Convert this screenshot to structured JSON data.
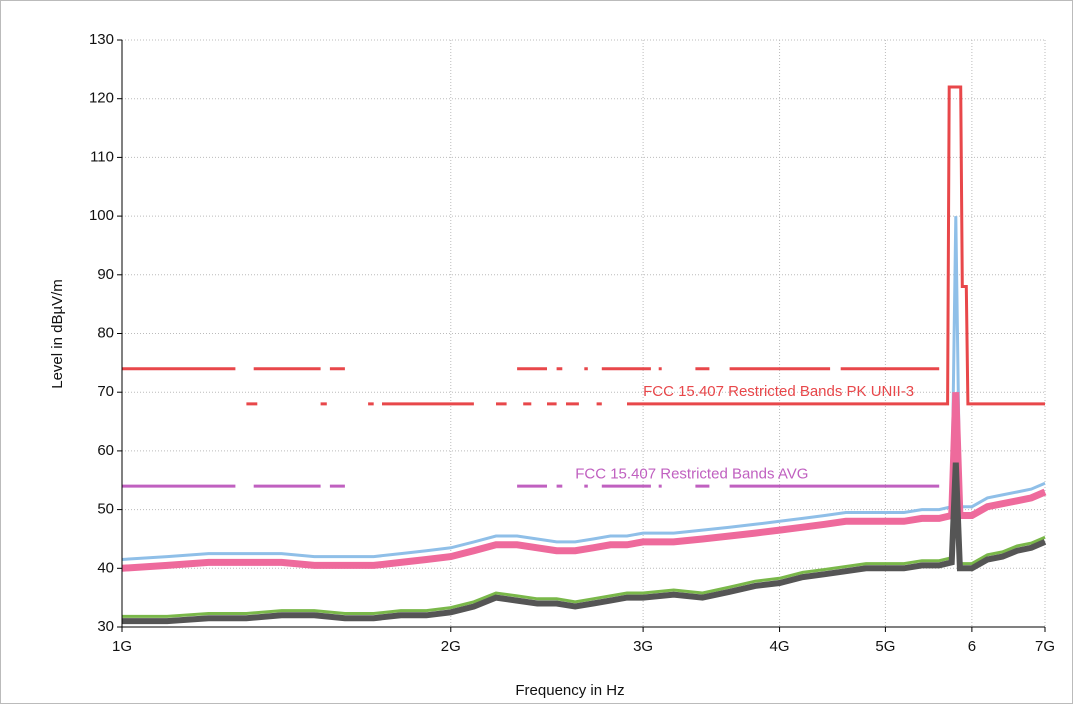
{
  "chart_data": {
    "type": "line",
    "xlabel": "Frequency in Hz",
    "ylabel": "Level in dBµV/m",
    "xscale": "log",
    "grid": true,
    "xlim": [
      1,
      7
    ],
    "ylim": [
      30,
      130
    ],
    "yticks": [
      30,
      40,
      50,
      60,
      70,
      80,
      90,
      100,
      110,
      120,
      130
    ],
    "xticks": [
      {
        "value": 1,
        "label": "1G"
      },
      {
        "value": 2,
        "label": "2G"
      },
      {
        "value": 3,
        "label": "3G"
      },
      {
        "value": 4,
        "label": "4G"
      },
      {
        "value": 5,
        "label": "5G"
      },
      {
        "value": 6,
        "label": "6"
      },
      {
        "value": 7,
        "label": "7G"
      }
    ],
    "annotations": [
      {
        "text": "FCC 15.407 Restricted Bands PK UNII-3",
        "x": 3.0,
        "y": 70,
        "color": "#e8474a"
      },
      {
        "text": "FCC 15.407 Restricted Bands AVG",
        "x": 2.6,
        "y": 56,
        "color": "#c060c0"
      }
    ],
    "series": [
      {
        "color": "#e8474a",
        "width": 3,
        "x": [
          1.0,
          1.27,
          null,
          1.32,
          1.52,
          null,
          1.55,
          1.6,
          null,
          2.3,
          2.45,
          null,
          2.5,
          2.53,
          null,
          2.65,
          2.67,
          null,
          2.75,
          3.05,
          null,
          3.1,
          3.12,
          null,
          3.35,
          3.45,
          null,
          3.6,
          4.45,
          null,
          4.55,
          5.6
        ],
        "values": [
          74,
          74,
          null,
          74,
          74,
          null,
          74,
          74,
          null,
          74,
          74,
          null,
          74,
          74,
          null,
          74,
          74,
          null,
          74,
          74,
          null,
          74,
          74,
          null,
          74,
          74,
          null,
          74,
          74,
          null,
          74,
          74
        ]
      },
      {
        "color": "#e8474a",
        "width": 3,
        "x": [
          1.3,
          1.33,
          null,
          1.52,
          1.54,
          null,
          1.68,
          1.7,
          null,
          1.73,
          2.1,
          null,
          2.2,
          2.25,
          null,
          2.33,
          2.37,
          null,
          2.45,
          2.5,
          null,
          2.55,
          2.62,
          null,
          2.72,
          2.75,
          null,
          2.9,
          5.7,
          5.72,
          5.86,
          5.88,
          5.93,
          5.95,
          7.0
        ],
        "values": [
          68,
          68,
          null,
          68,
          68,
          null,
          68,
          68,
          null,
          68,
          68,
          null,
          68,
          68,
          null,
          68,
          68,
          null,
          68,
          68,
          null,
          68,
          68,
          null,
          68,
          68,
          null,
          68,
          68,
          122,
          122,
          88,
          88,
          68,
          68
        ]
      },
      {
        "color": "#c060c0",
        "width": 3,
        "x": [
          1.0,
          1.27,
          null,
          1.32,
          1.52,
          null,
          1.55,
          1.6,
          null,
          2.3,
          2.45,
          null,
          2.5,
          2.53,
          null,
          2.65,
          2.67,
          null,
          2.75,
          3.05,
          null,
          3.1,
          3.12,
          null,
          3.35,
          3.45,
          null,
          3.6,
          5.6
        ],
        "values": [
          54,
          54,
          null,
          54,
          54,
          null,
          54,
          54,
          null,
          54,
          54,
          null,
          54,
          54,
          null,
          54,
          54,
          null,
          54,
          54,
          null,
          54,
          54,
          null,
          54,
          54,
          null,
          54,
          54
        ]
      },
      {
        "color": "#8fbfe8",
        "width": 3,
        "x": [
          1.0,
          1.1,
          1.2,
          1.3,
          1.4,
          1.5,
          1.6,
          1.7,
          1.8,
          1.9,
          2.0,
          2.1,
          2.2,
          2.3,
          2.4,
          2.5,
          2.6,
          2.7,
          2.8,
          2.9,
          3.0,
          3.2,
          3.4,
          3.6,
          3.8,
          4.0,
          4.2,
          4.4,
          4.6,
          4.8,
          5.0,
          5.2,
          5.4,
          5.6,
          5.75,
          5.8,
          5.85,
          6.0,
          6.2,
          6.4,
          6.6,
          6.8,
          7.0
        ],
        "values": [
          41.5,
          42,
          42.5,
          42.5,
          42.5,
          42,
          42,
          42,
          42.5,
          43,
          43.5,
          44.5,
          45.5,
          45.5,
          45,
          44.5,
          44.5,
          45,
          45.5,
          45.5,
          46,
          46,
          46.5,
          47,
          47.5,
          48,
          48.5,
          49,
          49.5,
          49.5,
          49.5,
          49.5,
          50,
          50,
          50.5,
          100,
          50.5,
          50.5,
          52,
          52.5,
          53,
          53.5,
          54.5
        ]
      },
      {
        "color": "#ee6a9c",
        "width": 7,
        "x": [
          1.0,
          1.1,
          1.2,
          1.3,
          1.4,
          1.5,
          1.6,
          1.7,
          1.8,
          1.9,
          2.0,
          2.1,
          2.2,
          2.3,
          2.4,
          2.5,
          2.6,
          2.7,
          2.8,
          2.9,
          3.0,
          3.2,
          3.4,
          3.6,
          3.8,
          4.0,
          4.2,
          4.4,
          4.6,
          4.8,
          5.0,
          5.2,
          5.4,
          5.6,
          5.75,
          5.8,
          5.85,
          6.0,
          6.2,
          6.4,
          6.6,
          6.8,
          7.0
        ],
        "values": [
          40,
          40.5,
          41,
          41,
          41,
          40.5,
          40.5,
          40.5,
          41,
          41.5,
          42,
          43,
          44,
          44,
          43.5,
          43,
          43,
          43.5,
          44,
          44,
          44.5,
          44.5,
          45,
          45.5,
          46,
          46.5,
          47,
          47.5,
          48,
          48,
          48,
          48,
          48.5,
          48.5,
          49,
          70,
          49,
          49,
          50.5,
          51,
          51.5,
          52,
          53
        ]
      },
      {
        "color": "#7ab84a",
        "width": 3,
        "x": [
          1.0,
          1.1,
          1.2,
          1.3,
          1.4,
          1.5,
          1.6,
          1.7,
          1.8,
          1.9,
          2.0,
          2.1,
          2.2,
          2.3,
          2.4,
          2.5,
          2.6,
          2.7,
          2.8,
          2.9,
          3.0,
          3.2,
          3.4,
          3.6,
          3.8,
          4.0,
          4.2,
          4.4,
          4.6,
          4.8,
          5.0,
          5.2,
          5.4,
          5.6,
          5.75,
          5.8,
          5.85,
          6.0,
          6.2,
          6.4,
          6.6,
          6.8,
          7.0
        ],
        "values": [
          31.8,
          31.8,
          32.3,
          32.3,
          32.8,
          32.8,
          32.3,
          32.3,
          32.8,
          32.8,
          33.3,
          34.3,
          35.8,
          35.3,
          34.8,
          34.8,
          34.3,
          34.8,
          35.3,
          35.8,
          35.8,
          36.3,
          35.8,
          36.8,
          37.8,
          38.3,
          39.3,
          39.8,
          40.3,
          40.8,
          40.8,
          40.8,
          41.3,
          41.3,
          41.8,
          48,
          40.8,
          40.8,
          42.3,
          42.8,
          43.8,
          44.3,
          45.3
        ]
      },
      {
        "color": "#555555",
        "width": 6,
        "x": [
          1.0,
          1.1,
          1.2,
          1.3,
          1.4,
          1.5,
          1.6,
          1.7,
          1.8,
          1.9,
          2.0,
          2.1,
          2.2,
          2.3,
          2.4,
          2.5,
          2.6,
          2.7,
          2.8,
          2.9,
          3.0,
          3.2,
          3.4,
          3.6,
          3.8,
          4.0,
          4.2,
          4.4,
          4.6,
          4.8,
          5.0,
          5.2,
          5.4,
          5.6,
          5.75,
          5.8,
          5.85,
          6.0,
          6.2,
          6.4,
          6.6,
          6.8,
          7.0
        ],
        "values": [
          31,
          31,
          31.5,
          31.5,
          32,
          32,
          31.5,
          31.5,
          32,
          32,
          32.5,
          33.5,
          35,
          34.5,
          34,
          34,
          33.5,
          34,
          34.5,
          35,
          35,
          35.5,
          35,
          36,
          37,
          37.5,
          38.5,
          39,
          39.5,
          40,
          40,
          40,
          40.5,
          40.5,
          41,
          58,
          40,
          40,
          41.5,
          42,
          43,
          43.5,
          44.5
        ]
      }
    ]
  }
}
